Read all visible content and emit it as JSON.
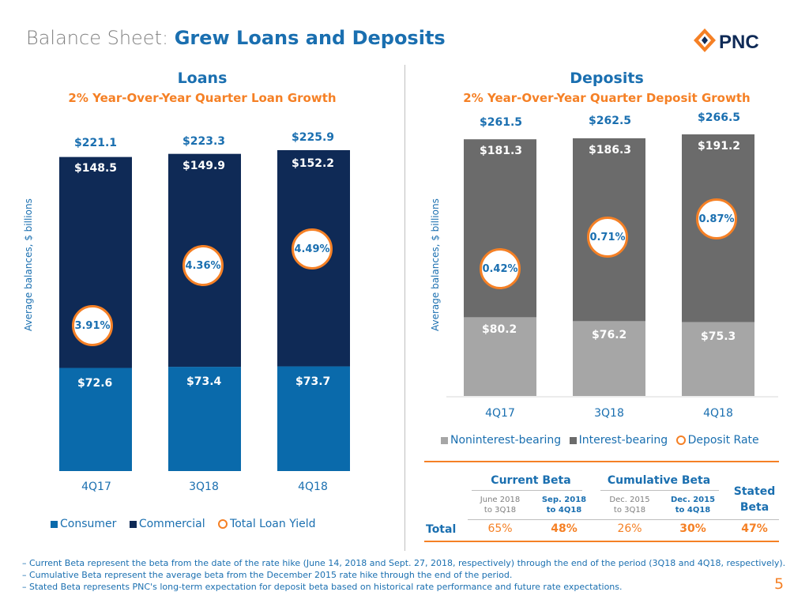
{
  "header": {
    "title_prefix": "Balance Sheet: ",
    "title_highlight": "Grew Loans and Deposits",
    "logo_text": "PNC"
  },
  "colors": {
    "consumer": "#0a6aab",
    "commercial": "#0f2a56",
    "noninterest": "#a6a6a6",
    "interest": "#6b6b6b",
    "accent": "#f58025",
    "blue": "#1a6fb0"
  },
  "chart_data": [
    {
      "type": "bar",
      "stacked": true,
      "title": "Loans",
      "subtitle": "2% Year-Over-Year Quarter Loan Growth",
      "ylabel": "Average balances, $ billions",
      "categories": [
        "4Q17",
        "3Q18",
        "4Q18"
      ],
      "series": [
        {
          "name": "Consumer",
          "values": [
            72.6,
            73.4,
            73.7
          ],
          "labels": [
            "$72.6",
            "$73.4",
            "$73.7"
          ]
        },
        {
          "name": "Commercial",
          "values": [
            148.5,
            149.9,
            152.2
          ],
          "labels": [
            "$148.5",
            "$149.9",
            "$152.2"
          ]
        }
      ],
      "totals": [
        "$221.1",
        "$223.3",
        "$225.9"
      ],
      "rate_series": {
        "name": "Total Loan Yield",
        "values": [
          3.91,
          4.36,
          4.49
        ],
        "labels": [
          "3.91%",
          "4.36%",
          "4.49%"
        ]
      },
      "ylim": [
        0,
        225.9
      ]
    },
    {
      "type": "bar",
      "stacked": true,
      "title": "Deposits",
      "subtitle": "2% Year-Over-Year Quarter Deposit Growth",
      "ylabel": "Average balances, $ billions",
      "categories": [
        "4Q17",
        "3Q18",
        "4Q18"
      ],
      "series": [
        {
          "name": "Noninterest-bearing",
          "values": [
            80.2,
            76.2,
            75.3
          ],
          "labels": [
            "$80.2",
            "$76.2",
            "$75.3"
          ]
        },
        {
          "name": "Interest-bearing",
          "values": [
            181.3,
            186.3,
            191.2
          ],
          "labels": [
            "$181.3",
            "$186.3",
            "$191.2"
          ]
        }
      ],
      "totals": [
        "$261.5",
        "$262.5",
        "$266.5"
      ],
      "rate_series": {
        "name": "Deposit Rate",
        "values": [
          0.42,
          0.71,
          0.87
        ],
        "labels": [
          "0.42%",
          "0.71%",
          "0.87%"
        ]
      },
      "ylim": [
        0,
        266.5
      ]
    }
  ],
  "beta_table": {
    "current_beta": "Current Beta",
    "cumulative_beta": "Cumulative Beta",
    "stated_beta": "Stated Beta",
    "periods": [
      {
        "line1": "June 2018",
        "line2": "to 3Q18",
        "value": "65%",
        "bold": false
      },
      {
        "line1": "Sep. 2018",
        "line2": "to 4Q18",
        "value": "48%",
        "bold": true
      },
      {
        "line1": "Dec. 2015",
        "line2": "to 3Q18",
        "value": "26%",
        "bold": false
      },
      {
        "line1": "Dec. 2015",
        "line2": "to 4Q18",
        "value": "30%",
        "bold": true
      }
    ],
    "total_label": "Total",
    "stated_value": "47%"
  },
  "footnotes": [
    "– Current Beta represent the beta from the date of the rate hike (June 14, 2018 and Sept. 27, 2018, respectively) through the end of the period (3Q18 and 4Q18, respectively).",
    "– Cumulative Beta represent the average beta from the December 2015 rate hike through the end of the period.",
    "– Stated Beta represents PNC's long-term expectation for deposit beta based on historical rate performance and future rate expectations."
  ],
  "page_number": "5"
}
